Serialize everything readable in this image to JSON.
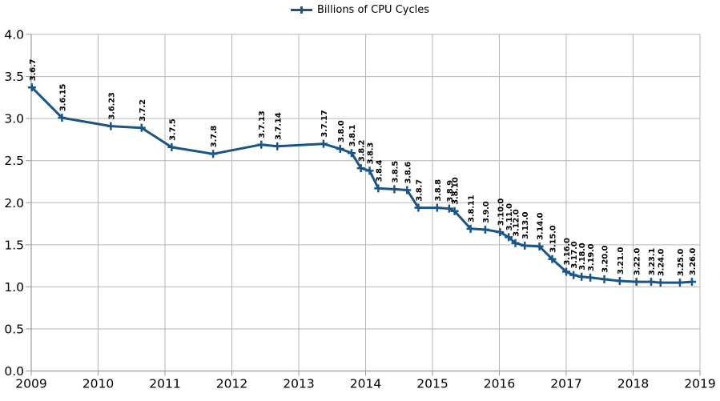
{
  "chart_data": {
    "type": "line",
    "title": "",
    "legend": {
      "label": "Billions of CPU Cycles",
      "position": "top-center",
      "marker": "plus-line"
    },
    "grid": true,
    "colors": {
      "series": "#1a5588",
      "grid": "#b6b6b6",
      "axis": "#9c9c9c",
      "text": "#000000",
      "background": "#ffffff"
    },
    "x_axis": {
      "min": 2009,
      "max": 2019,
      "step": 1,
      "tick_labels": [
        "2009",
        "2010",
        "2011",
        "2012",
        "2013",
        "2014",
        "2015",
        "2016",
        "2017",
        "2018",
        "2019"
      ]
    },
    "y_axis": {
      "min": 0,
      "max": 4,
      "step": 0.5,
      "tick_labels": [
        "0.0",
        "0.5",
        "1.0",
        "1.5",
        "2.0",
        "2.5",
        "3.0",
        "3.5",
        "4.0"
      ]
    },
    "series": [
      {
        "name": "Billions of CPU Cycles",
        "marker": "plus",
        "points": [
          {
            "label": "3.6.7",
            "x": 2009.01,
            "y": 3.37
          },
          {
            "label": "3.6.15",
            "x": 2009.46,
            "y": 3.01
          },
          {
            "label": "3.6.23",
            "x": 2010.19,
            "y": 2.91
          },
          {
            "label": "3.7.2",
            "x": 2010.65,
            "y": 2.89
          },
          {
            "label": "3.7.5",
            "x": 2011.1,
            "y": 2.66
          },
          {
            "label": "3.7.8",
            "x": 2011.72,
            "y": 2.58
          },
          {
            "label": "3.7.13",
            "x": 2012.44,
            "y": 2.69
          },
          {
            "label": "3.7.14",
            "x": 2012.68,
            "y": 2.67
          },
          {
            "label": "3.7.17",
            "x": 2013.37,
            "y": 2.7
          },
          {
            "label": "3.8.0",
            "x": 2013.62,
            "y": 2.64
          },
          {
            "label": "3.8.1",
            "x": 2013.79,
            "y": 2.59
          },
          {
            "label": "3.8.2",
            "x": 2013.93,
            "y": 2.41
          },
          {
            "label": "3.8.3",
            "x": 2014.06,
            "y": 2.38
          },
          {
            "label": "3.8.4",
            "x": 2014.19,
            "y": 2.17
          },
          {
            "label": "3.8.5",
            "x": 2014.43,
            "y": 2.16
          },
          {
            "label": "3.8.6",
            "x": 2014.62,
            "y": 2.15
          },
          {
            "label": "3.8.7",
            "x": 2014.79,
            "y": 1.94
          },
          {
            "label": "3.8.8",
            "x": 2015.07,
            "y": 1.94
          },
          {
            "label": "3.8.9",
            "x": 2015.25,
            "y": 1.93
          },
          {
            "label": "3.8.10",
            "x": 2015.33,
            "y": 1.9
          },
          {
            "label": "3.8.11",
            "x": 2015.57,
            "y": 1.69
          },
          {
            "label": "3.9.0",
            "x": 2015.79,
            "y": 1.68
          },
          {
            "label": "3.10.0",
            "x": 2016.01,
            "y": 1.65
          },
          {
            "label": "3.11.0",
            "x": 2016.14,
            "y": 1.59
          },
          {
            "label": "3.12.0",
            "x": 2016.24,
            "y": 1.52
          },
          {
            "label": "3.13.0",
            "x": 2016.38,
            "y": 1.49
          },
          {
            "label": "3.14.0",
            "x": 2016.6,
            "y": 1.48
          },
          {
            "label": "3.15.0",
            "x": 2016.79,
            "y": 1.33
          },
          {
            "label": "3.16.0",
            "x": 2017.0,
            "y": 1.18
          },
          {
            "label": "3.17.0",
            "x": 2017.11,
            "y": 1.14
          },
          {
            "label": "3.18.0",
            "x": 2017.23,
            "y": 1.12
          },
          {
            "label": "3.19.0",
            "x": 2017.36,
            "y": 1.11
          },
          {
            "label": "3.20.0",
            "x": 2017.57,
            "y": 1.09
          },
          {
            "label": "3.21.0",
            "x": 2017.8,
            "y": 1.07
          },
          {
            "label": "3.22.0",
            "x": 2018.05,
            "y": 1.06
          },
          {
            "label": "3.23.1",
            "x": 2018.27,
            "y": 1.06
          },
          {
            "label": "3.24.0",
            "x": 2018.41,
            "y": 1.05
          },
          {
            "label": "3.25.0",
            "x": 2018.7,
            "y": 1.05
          },
          {
            "label": "3.26.0",
            "x": 2018.88,
            "y": 1.06
          }
        ]
      }
    ]
  }
}
